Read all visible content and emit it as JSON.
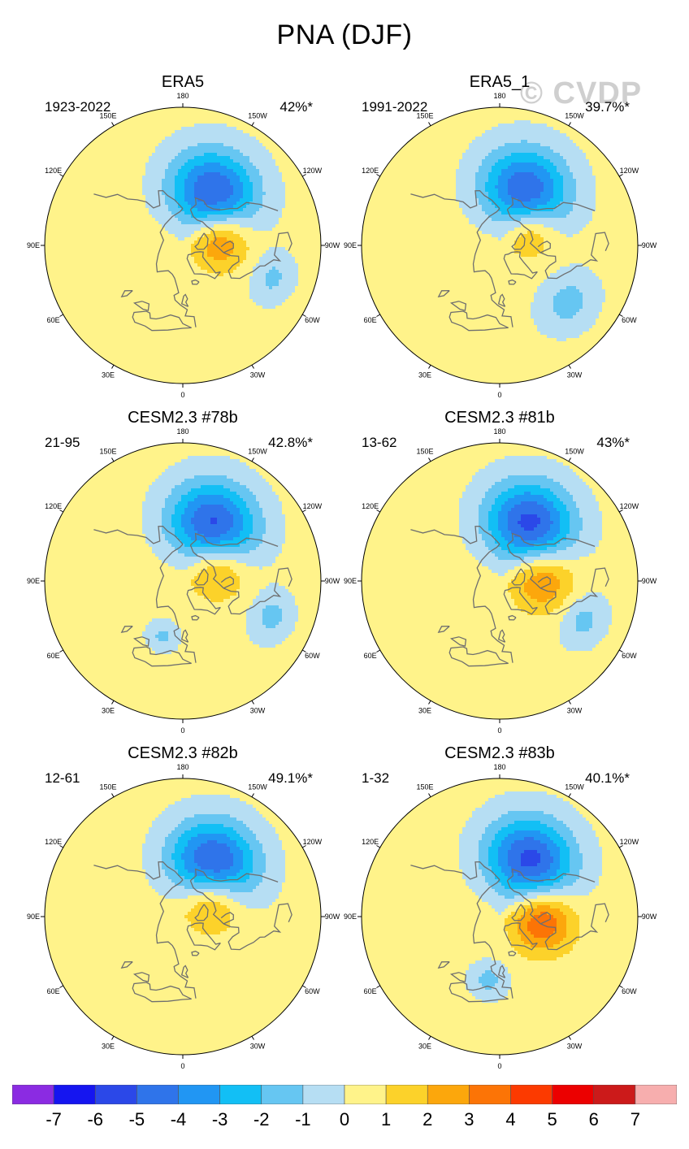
{
  "page": {
    "title": "PNA (DJF)",
    "watermark": "© CVDP"
  },
  "lon_labels": [
    "180",
    "150E",
    "120E",
    "90E",
    "60E",
    "30E",
    "0",
    "30W",
    "60W",
    "90W",
    "120W",
    "150W"
  ],
  "colors": {
    "land_outline": "#6e6e6e",
    "plot_border": "#000000"
  },
  "chart_data": {
    "type": "contour_map",
    "projection": "north polar stereographic",
    "variable": "PNA (DJF)",
    "panels": [
      {
        "title": "ERA5",
        "range": "1923-2022",
        "pct": "42%*",
        "fields": [
          {
            "kind": "low",
            "center_lon": -150,
            "center_lat": 50,
            "peak": -5.5,
            "radius_deg": 28
          },
          {
            "kind": "high",
            "center_lon": -100,
            "center_lat": 65,
            "peak": 3.2,
            "radius_deg": 20
          },
          {
            "kind": "low",
            "center_lon": -70,
            "center_lat": 28,
            "peak": -1.6,
            "radius_deg": 14
          }
        ]
      },
      {
        "title": "ERA5_1",
        "range": "1991-2022",
        "pct": "39.7%*",
        "fields": [
          {
            "kind": "low",
            "center_lon": -155,
            "center_lat": 50,
            "peak": -5.3,
            "radius_deg": 28
          },
          {
            "kind": "high",
            "center_lon": -115,
            "center_lat": 68,
            "peak": 2.4,
            "radius_deg": 18
          },
          {
            "kind": "low",
            "center_lon": -50,
            "center_lat": 32,
            "peak": -1.8,
            "radius_deg": 18
          }
        ]
      },
      {
        "title": "CESM2.3 #78b",
        "range": "21-95",
        "pct": "42.8%*",
        "fields": [
          {
            "kind": "low",
            "center_lon": -152,
            "center_lat": 48,
            "peak": -5.6,
            "radius_deg": 28
          },
          {
            "kind": "high",
            "center_lon": -110,
            "center_lat": 66,
            "peak": 2.7,
            "radius_deg": 20
          },
          {
            "kind": "low",
            "center_lon": -68,
            "center_lat": 28,
            "peak": -1.7,
            "radius_deg": 14
          },
          {
            "kind": "low",
            "center_lon": 20,
            "center_lat": 52,
            "peak": -1.6,
            "radius_deg": 10
          }
        ]
      },
      {
        "title": "CESM2.3 #81b",
        "range": "13-62",
        "pct": "43%*",
        "fields": [
          {
            "kind": "low",
            "center_lon": -152,
            "center_lat": 48,
            "peak": -5.8,
            "radius_deg": 28
          },
          {
            "kind": "high",
            "center_lon": -95,
            "center_lat": 62,
            "peak": 3.0,
            "radius_deg": 22
          },
          {
            "kind": "low",
            "center_lon": -65,
            "center_lat": 30,
            "peak": -1.7,
            "radius_deg": 15
          }
        ]
      },
      {
        "title": "CESM2.3 #82b",
        "range": "12-61",
        "pct": "49.1%*",
        "fields": [
          {
            "kind": "low",
            "center_lon": -150,
            "center_lat": 50,
            "peak": -5.9,
            "radius_deg": 28
          },
          {
            "kind": "high",
            "center_lon": -120,
            "center_lat": 68,
            "peak": 3.2,
            "radius_deg": 21
          }
        ]
      },
      {
        "title": "CESM2.3 #83b",
        "range": "1-32",
        "pct": "40.1%*",
        "fields": [
          {
            "kind": "low",
            "center_lon": -152,
            "center_lat": 48,
            "peak": -5.7,
            "radius_deg": 28
          },
          {
            "kind": "high",
            "center_lon": -85,
            "center_lat": 62,
            "peak": 3.8,
            "radius_deg": 21
          },
          {
            "kind": "low",
            "center_lon": 10,
            "center_lat": 48,
            "peak": -1.7,
            "radius_deg": 12
          }
        ]
      }
    ],
    "colorbar": {
      "labels": [
        "-7",
        "-6",
        "-5",
        "-4",
        "-3",
        "-2",
        "-1",
        "0",
        "1",
        "2",
        "3",
        "4",
        "5",
        "6",
        "7"
      ],
      "levels": [
        -7,
        -6,
        -5,
        -4,
        -3,
        -2,
        -1,
        0,
        1,
        2,
        3,
        4,
        5,
        6,
        7
      ],
      "colors": [
        "#8b2be2",
        "#1515f0",
        "#2b48e8",
        "#2f74ea",
        "#2196f3",
        "#12bff5",
        "#66c6f2",
        "#b6def3",
        "#fff38a",
        "#fcd22a",
        "#fca70c",
        "#fc7406",
        "#fc3a00",
        "#ec0000",
        "#cc1a1a",
        "#f7aeae"
      ]
    }
  }
}
